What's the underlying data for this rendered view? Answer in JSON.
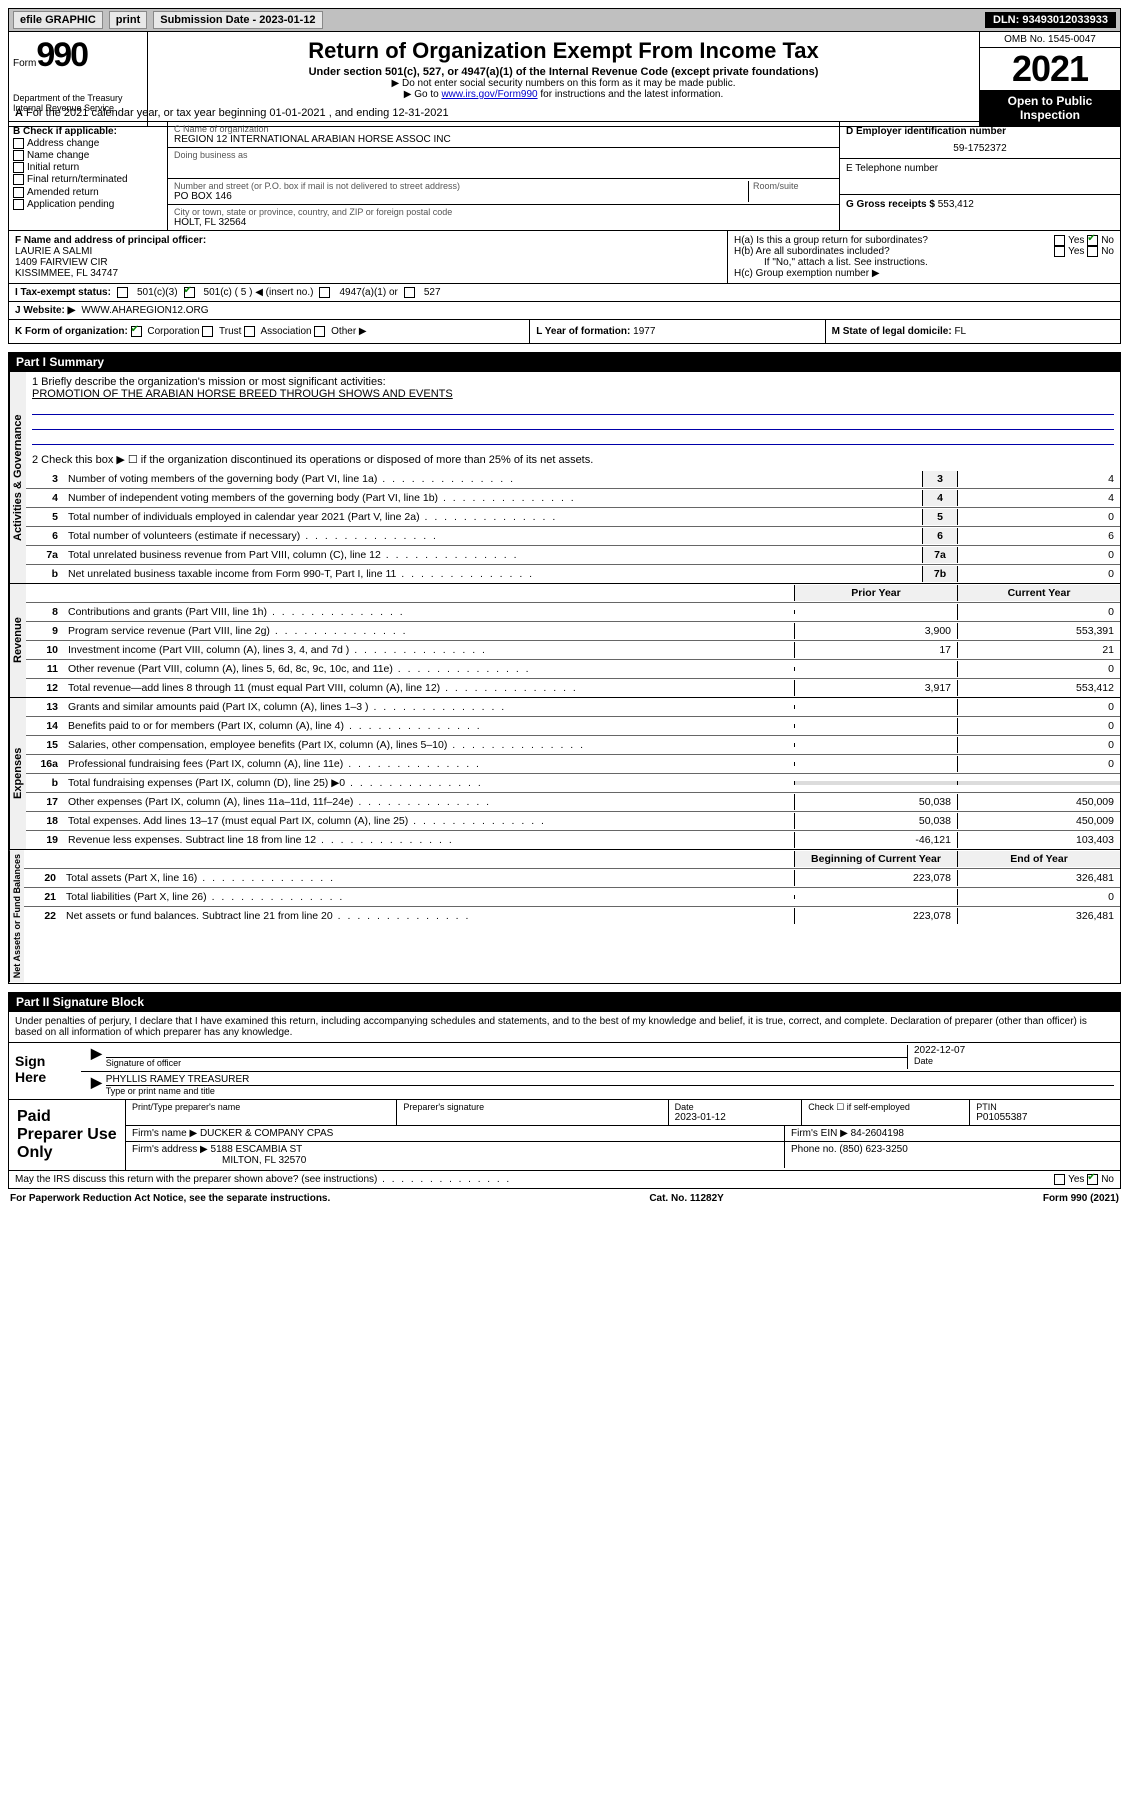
{
  "topbar": {
    "efile": "efile GRAPHIC",
    "print": "print",
    "sub_label": "Submission Date - ",
    "sub_date": "2023-01-12",
    "dln": "DLN: 93493012033933"
  },
  "header": {
    "form_word": "Form",
    "form_num": "990",
    "title": "Return of Organization Exempt From Income Tax",
    "sub": "Under section 501(c), 527, or 4947(a)(1) of the Internal Revenue Code (except private foundations)",
    "note1": "▶ Do not enter social security numbers on this form as it may be made public.",
    "note2_pre": "▶ Go to ",
    "note2_link": "www.irs.gov/Form990",
    "note2_post": " for instructions and the latest information.",
    "omb": "OMB No. 1545-0047",
    "year": "2021",
    "open": "Open to Public Inspection",
    "dept": "Department of the Treasury\nInternal Revenue Service"
  },
  "row_a": "For the 2021 calendar year, or tax year beginning 01-01-2021   , and ending 12-31-2021",
  "col_b": {
    "label": "B Check if applicable:",
    "items": [
      "Address change",
      "Name change",
      "Initial return",
      "Final return/terminated",
      "Amended return",
      "Application pending"
    ]
  },
  "col_c": {
    "name_label": "C Name of organization",
    "name": "REGION 12 INTERNATIONAL ARABIAN HORSE ASSOC INC",
    "dba_label": "Doing business as",
    "dba": "",
    "addr_label": "Number and street (or P.O. box if mail is not delivered to street address)",
    "room_label": "Room/suite",
    "addr": "PO BOX 146",
    "city_label": "City or town, state or province, country, and ZIP or foreign postal code",
    "city": "HOLT, FL  32564"
  },
  "col_de": {
    "d_label": "D Employer identification number",
    "d_val": "59-1752372",
    "e_label": "E Telephone number",
    "e_val": "",
    "g_label": "G Gross receipts $ ",
    "g_val": "553,412"
  },
  "block_f": {
    "label": "F  Name and address of principal officer:",
    "name": "LAURIE A SALMI",
    "addr1": "1409 FAIRVIEW CIR",
    "addr2": "KISSIMMEE, FL  34747"
  },
  "block_h": {
    "a": "H(a)  Is this a group return for subordinates?",
    "b": "H(b)  Are all subordinates included?",
    "attach": "If \"No,\" attach a list. See instructions.",
    "c": "H(c)  Group exemption number ▶",
    "yes": "Yes",
    "no": "No"
  },
  "line_i": {
    "label": "I   Tax-exempt status:",
    "c3": "501(c)(3)",
    "c5": "501(c) ( 5 ) ◀ (insert no.)",
    "a1": "4947(a)(1) or",
    "s527": "527"
  },
  "line_j": {
    "label": "J   Website: ▶",
    "val": "WWW.AHAREGION12.ORG"
  },
  "klm": {
    "k_label": "K Form of organization:",
    "k_opts": [
      "Corporation",
      "Trust",
      "Association",
      "Other ▶"
    ],
    "l_label": "L Year of formation: ",
    "l_val": "1977",
    "m_label": "M State of legal domicile: ",
    "m_val": "FL"
  },
  "part1": {
    "header": "Part I     Summary",
    "mission_label": "1   Briefly describe the organization's mission or most significant activities:",
    "mission": "PROMOTION OF THE ARABIAN HORSE BREED THROUGH SHOWS AND EVENTS",
    "line2": "2   Check this box ▶ ☐  if the organization discontinued its operations or disposed of more than 25% of its net assets.",
    "sections": {
      "gov": {
        "label": "Activities & Governance",
        "rows": [
          {
            "n": "3",
            "d": "Number of voting members of the governing body (Part VI, line 1a)",
            "box": "3",
            "v2": "4"
          },
          {
            "n": "4",
            "d": "Number of independent voting members of the governing body (Part VI, line 1b)",
            "box": "4",
            "v2": "4"
          },
          {
            "n": "5",
            "d": "Total number of individuals employed in calendar year 2021 (Part V, line 2a)",
            "box": "5",
            "v2": "0"
          },
          {
            "n": "6",
            "d": "Total number of volunteers (estimate if necessary)",
            "box": "6",
            "v2": "6"
          },
          {
            "n": "7a",
            "d": "Total unrelated business revenue from Part VIII, column (C), line 12",
            "box": "7a",
            "v2": "0"
          },
          {
            "n": "b",
            "d": "Net unrelated business taxable income from Form 990-T, Part I, line 11",
            "box": "7b",
            "v2": "0"
          }
        ]
      },
      "rev": {
        "label": "Revenue",
        "head_prior": "Prior Year",
        "head_curr": "Current Year",
        "rows": [
          {
            "n": "8",
            "d": "Contributions and grants (Part VIII, line 1h)",
            "v1": "",
            "v2": "0"
          },
          {
            "n": "9",
            "d": "Program service revenue (Part VIII, line 2g)",
            "v1": "3,900",
            "v2": "553,391"
          },
          {
            "n": "10",
            "d": "Investment income (Part VIII, column (A), lines 3, 4, and 7d )",
            "v1": "17",
            "v2": "21"
          },
          {
            "n": "11",
            "d": "Other revenue (Part VIII, column (A), lines 5, 6d, 8c, 9c, 10c, and 11e)",
            "v1": "",
            "v2": "0"
          },
          {
            "n": "12",
            "d": "Total revenue—add lines 8 through 11 (must equal Part VIII, column (A), line 12)",
            "v1": "3,917",
            "v2": "553,412"
          }
        ]
      },
      "exp": {
        "label": "Expenses",
        "rows": [
          {
            "n": "13",
            "d": "Grants and similar amounts paid (Part IX, column (A), lines 1–3 )",
            "v1": "",
            "v2": "0"
          },
          {
            "n": "14",
            "d": "Benefits paid to or for members (Part IX, column (A), line 4)",
            "v1": "",
            "v2": "0"
          },
          {
            "n": "15",
            "d": "Salaries, other compensation, employee benefits (Part IX, column (A), lines 5–10)",
            "v1": "",
            "v2": "0"
          },
          {
            "n": "16a",
            "d": "Professional fundraising fees (Part IX, column (A), line 11e)",
            "v1": "",
            "v2": "0"
          },
          {
            "n": "b",
            "d": "Total fundraising expenses (Part IX, column (D), line 25) ▶0",
            "v1": "SHADE",
            "v2": "SHADE"
          },
          {
            "n": "17",
            "d": "Other expenses (Part IX, column (A), lines 11a–11d, 11f–24e)",
            "v1": "50,038",
            "v2": "450,009"
          },
          {
            "n": "18",
            "d": "Total expenses. Add lines 13–17 (must equal Part IX, column (A), line 25)",
            "v1": "50,038",
            "v2": "450,009"
          },
          {
            "n": "19",
            "d": "Revenue less expenses. Subtract line 18 from line 12",
            "v1": "-46,121",
            "v2": "103,403"
          }
        ]
      },
      "net": {
        "label": "Net Assets or Fund Balances",
        "head_prior": "Beginning of Current Year",
        "head_curr": "End of Year",
        "rows": [
          {
            "n": "20",
            "d": "Total assets (Part X, line 16)",
            "v1": "223,078",
            "v2": "326,481"
          },
          {
            "n": "21",
            "d": "Total liabilities (Part X, line 26)",
            "v1": "",
            "v2": "0"
          },
          {
            "n": "22",
            "d": "Net assets or fund balances. Subtract line 21 from line 20",
            "v1": "223,078",
            "v2": "326,481"
          }
        ]
      }
    }
  },
  "part2": {
    "header": "Part II    Signature Block",
    "penalty": "Under penalties of perjury, I declare that I have examined this return, including accompanying schedules and statements, and to the best of my knowledge and belief, it is true, correct, and complete. Declaration of preparer (other than officer) is based on all information of which preparer has any knowledge.",
    "sign_here": "Sign Here",
    "sig_officer": "Signature of officer",
    "sig_date_label": "Date",
    "sig_date": "2022-12-07",
    "officer_name": "PHYLLIS RAMEY TREASURER",
    "type_name": "Type or print name and title",
    "paid": "Paid Preparer Use Only",
    "prep_name_label": "Print/Type preparer's name",
    "prep_sig_label": "Preparer's signature",
    "prep_date_label": "Date",
    "prep_date": "2023-01-12",
    "check_self": "Check ☐ if self-employed",
    "ptin_label": "PTIN",
    "ptin": "P01055387",
    "firm_name_label": "Firm's name    ▶ ",
    "firm_name": "DUCKER & COMPANY CPAS",
    "firm_ein_label": "Firm's EIN ▶ ",
    "firm_ein": "84-2604198",
    "firm_addr_label": "Firm's address ▶ ",
    "firm_addr1": "5188 ESCAMBIA ST",
    "firm_addr2": "MILTON, FL  32570",
    "phone_label": "Phone no. ",
    "phone": "(850) 623-3250",
    "discuss": "May the IRS discuss this return with the preparer shown above? (see instructions)",
    "yes": "Yes",
    "no": "No"
  },
  "footer": {
    "left": "For Paperwork Reduction Act Notice, see the separate instructions.",
    "mid": "Cat. No. 11282Y",
    "right": "Form 990 (2021)"
  }
}
